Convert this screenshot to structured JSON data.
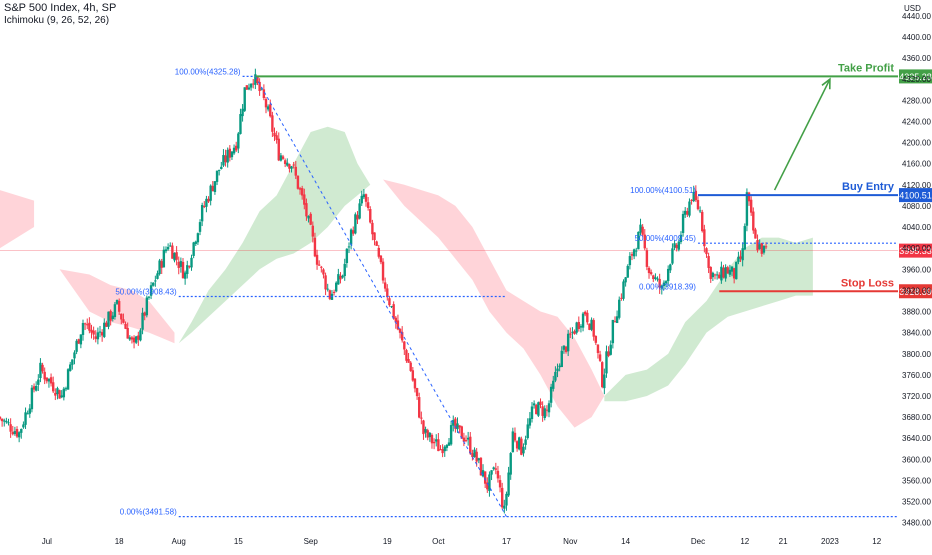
{
  "header": {
    "symbol_line": "S&P 500 Index, 4h, SP",
    "indicator_line": "Ichimoku (9, 26, 52, 26)"
  },
  "colors": {
    "up": "#089981",
    "down": "#f23645",
    "green_line": "#43a047",
    "blue_line": "#1e5bd6",
    "red_line": "#e53935",
    "fib_line": "#2962ff",
    "cloud_green": "#c8e6c9",
    "cloud_red": "#ffcdd2",
    "axis_text": "#131722"
  },
  "chart_data": {
    "type": "candlestick",
    "title": "S&P 500 Index, 4h, SP",
    "currency": "USD",
    "ylim": [
      3470,
      4470
    ],
    "y_ticks": [
      3480,
      3520,
      3560,
      3600,
      3640,
      3680,
      3720,
      3760,
      3800,
      3840,
      3880,
      3920,
      3960,
      4000,
      4040,
      4080,
      4120,
      4160,
      4200,
      4240,
      4280,
      4320,
      4360,
      4400,
      4440
    ],
    "x_ticks": [
      "Jul",
      "18",
      "Aug",
      "15",
      "Sep",
      "19",
      "Oct",
      "17",
      "Nov",
      "14",
      "Dec",
      "12",
      "21",
      "2023",
      "12"
    ],
    "x_tick_days": [
      0,
      17,
      31,
      45,
      62,
      80,
      92,
      108,
      123,
      136,
      153,
      164,
      173,
      184,
      195
    ],
    "x_range": [
      -11,
      200
    ],
    "price_path": [
      [
        -11,
        3680
      ],
      [
        -6,
        3650
      ],
      [
        -1,
        3770
      ],
      [
        4,
        3720
      ],
      [
        9,
        3860
      ],
      [
        12,
        3830
      ],
      [
        17,
        3890
      ],
      [
        21,
        3810
      ],
      [
        25,
        3920
      ],
      [
        29,
        4010
      ],
      [
        33,
        3950
      ],
      [
        37,
        4070
      ],
      [
        41,
        4150
      ],
      [
        45,
        4200
      ],
      [
        47,
        4300
      ],
      [
        49,
        4325
      ],
      [
        52,
        4270
      ],
      [
        55,
        4180
      ],
      [
        58,
        4160
      ],
      [
        61,
        4080
      ],
      [
        64,
        3980
      ],
      [
        67,
        3910
      ],
      [
        70,
        3950
      ],
      [
        72,
        4030
      ],
      [
        75,
        4100
      ],
      [
        78,
        3990
      ],
      [
        81,
        3900
      ],
      [
        84,
        3820
      ],
      [
        86,
        3770
      ],
      [
        89,
        3650
      ],
      [
        93,
        3620
      ],
      [
        96,
        3660
      ],
      [
        99,
        3640
      ],
      [
        102,
        3590
      ],
      [
        104,
        3550
      ],
      [
        106,
        3580
      ],
      [
        108,
        3500
      ],
      [
        110,
        3650
      ],
      [
        112,
        3620
      ],
      [
        115,
        3700
      ],
      [
        118,
        3690
      ],
      [
        121,
        3790
      ],
      [
        124,
        3840
      ],
      [
        127,
        3880
      ],
      [
        129,
        3840
      ],
      [
        131,
        3750
      ],
      [
        133,
        3830
      ],
      [
        134,
        3870
      ],
      [
        136,
        3930
      ],
      [
        138,
        3990
      ],
      [
        140,
        4030
      ],
      [
        142,
        3960
      ],
      [
        145,
        3920
      ],
      [
        147,
        3980
      ],
      [
        149,
        4010
      ],
      [
        150,
        4050
      ],
      [
        152,
        4100
      ],
      [
        154,
        4070
      ],
      [
        156,
        3960
      ],
      [
        158,
        3940
      ],
      [
        160,
        3960
      ],
      [
        162,
        3950
      ],
      [
        164,
        3990
      ],
      [
        165,
        4100
      ],
      [
        167,
        4010
      ],
      [
        169,
        3995
      ]
    ],
    "ichimoku_cloud": [
      {
        "fill": "cloud_red",
        "top": [
          [
            -11,
            4110
          ],
          [
            -3,
            4090
          ]
        ],
        "bottom": [
          [
            -11,
            4000
          ],
          [
            -3,
            4040
          ]
        ]
      },
      {
        "fill": "cloud_red",
        "top": [
          [
            3,
            3960
          ],
          [
            10,
            3950
          ],
          [
            15,
            3930
          ],
          [
            20,
            3920
          ],
          [
            24,
            3900
          ],
          [
            27,
            3870
          ],
          [
            30,
            3840
          ]
        ],
        "bottom": [
          [
            3,
            3960
          ],
          [
            10,
            3880
          ],
          [
            15,
            3860
          ],
          [
            20,
            3850
          ],
          [
            24,
            3840
          ],
          [
            27,
            3830
          ],
          [
            30,
            3820
          ]
        ]
      },
      {
        "fill": "cloud_green",
        "top": [
          [
            31,
            3820
          ],
          [
            34,
            3860
          ],
          [
            38,
            3920
          ],
          [
            42,
            3960
          ],
          [
            46,
            4010
          ],
          [
            50,
            4070
          ],
          [
            54,
            4100
          ],
          [
            58,
            4160
          ],
          [
            62,
            4220
          ],
          [
            66,
            4230
          ],
          [
            70,
            4220
          ],
          [
            73,
            4160
          ],
          [
            76,
            4120
          ]
        ],
        "bottom": [
          [
            31,
            3820
          ],
          [
            34,
            3840
          ],
          [
            38,
            3870
          ],
          [
            42,
            3900
          ],
          [
            46,
            3930
          ],
          [
            50,
            3960
          ],
          [
            54,
            3980
          ],
          [
            58,
            3990
          ],
          [
            62,
            4010
          ],
          [
            66,
            4040
          ],
          [
            70,
            4080
          ],
          [
            73,
            4100
          ],
          [
            76,
            4120
          ]
        ]
      },
      {
        "fill": "cloud_red",
        "top": [
          [
            79,
            4130
          ],
          [
            84,
            4120
          ],
          [
            88,
            4110
          ],
          [
            92,
            4100
          ],
          [
            96,
            4080
          ],
          [
            100,
            4040
          ],
          [
            104,
            3980
          ],
          [
            108,
            3920
          ],
          [
            112,
            3900
          ],
          [
            116,
            3880
          ],
          [
            120,
            3870
          ],
          [
            124,
            3830
          ],
          [
            128,
            3770
          ],
          [
            131,
            3720
          ]
        ],
        "bottom": [
          [
            79,
            4130
          ],
          [
            84,
            4080
          ],
          [
            88,
            4050
          ],
          [
            92,
            4020
          ],
          [
            96,
            3980
          ],
          [
            100,
            3940
          ],
          [
            104,
            3880
          ],
          [
            108,
            3840
          ],
          [
            112,
            3810
          ],
          [
            116,
            3760
          ],
          [
            120,
            3700
          ],
          [
            124,
            3660
          ],
          [
            128,
            3680
          ],
          [
            131,
            3720
          ]
        ]
      },
      {
        "fill": "cloud_green",
        "top": [
          [
            131,
            3720
          ],
          [
            136,
            3760
          ],
          [
            141,
            3770
          ],
          [
            146,
            3800
          ],
          [
            150,
            3860
          ],
          [
            155,
            3900
          ],
          [
            160,
            3960
          ],
          [
            164,
            4000
          ],
          [
            168,
            4020
          ],
          [
            172,
            4020
          ],
          [
            176,
            4010
          ],
          [
            180,
            4020
          ]
        ],
        "bottom": [
          [
            131,
            3710
          ],
          [
            136,
            3710
          ],
          [
            141,
            3720
          ],
          [
            146,
            3740
          ],
          [
            150,
            3780
          ],
          [
            155,
            3840
          ],
          [
            160,
            3870
          ],
          [
            164,
            3880
          ],
          [
            168,
            3890
          ],
          [
            172,
            3900
          ],
          [
            176,
            3910
          ],
          [
            180,
            3910
          ]
        ]
      }
    ],
    "fibonacci": [
      {
        "label": "100.00%(4325.28)",
        "price": 4325.28,
        "x0": 46,
        "x1": 49
      },
      {
        "label": "50.00%(3908.43)",
        "price": 3908.43,
        "x0": 31,
        "x1": 108
      },
      {
        "label": "0.00%(3491.58)",
        "price": 3491.58,
        "x0": 31,
        "x1": 200
      },
      {
        "label": "100.00%(4100.51)",
        "price": 4100.51,
        "x0": 153,
        "x1": 153
      },
      {
        "label": "50.00%(4009.45)",
        "price": 4009.45,
        "x0": 153,
        "x1": 200
      },
      {
        "label": "0.00%(3918.39)",
        "price": 3918.39,
        "x0": 153,
        "x1": 153
      }
    ],
    "trade_levels": [
      {
        "name": "Take Profit",
        "price": 4325.28,
        "label": "4325.28",
        "color": "green_line",
        "x0": 49
      },
      {
        "name": "Buy Entry",
        "price": 4100.51,
        "label": "4100.51",
        "color": "blue_line",
        "x0": 153
      },
      {
        "name": "Stop Loss",
        "price": 3918.39,
        "label": "3918.39",
        "color": "red_line",
        "x0": 158
      }
    ],
    "last_price": {
      "price": 3995.33,
      "label": "3995.33"
    },
    "projection_arrow": {
      "from": [
        171,
        4110
      ],
      "to": [
        184,
        4320
      ]
    },
    "fib_diagonal": {
      "from": [
        49,
        4325.28
      ],
      "to": [
        108,
        3491.58
      ]
    }
  }
}
